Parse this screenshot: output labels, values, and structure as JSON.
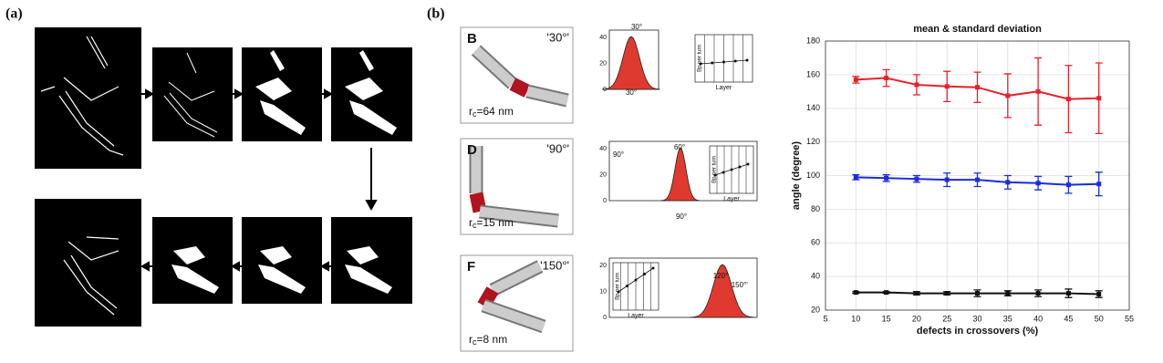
{
  "labels": {
    "a": "(a)",
    "b": "(b)"
  },
  "origami": [
    {
      "letter": "B",
      "angle": "'30°'",
      "radius_symbol": "r",
      "radius_subscript": "c",
      "radius_value": "=64 nm",
      "hist_yticks": [
        "40",
        "20",
        "0"
      ],
      "hist_texts": [
        "30°",
        "30°"
      ],
      "inset_ylabel": "Bp per turn",
      "inset_xlabel": "Layer"
    },
    {
      "letter": "D",
      "angle": "'90°'",
      "radius_symbol": "r",
      "radius_subscript": "c",
      "radius_value": "=15 nm",
      "hist_yticks": [
        "40",
        "20",
        "0"
      ],
      "hist_texts": [
        "90°",
        "60°",
        "90°"
      ],
      "inset_ylabel": "Bp per turn",
      "inset_xlabel": "Layer"
    },
    {
      "letter": "F",
      "angle": "'150°'",
      "radius_symbol": "r",
      "radius_subscript": "c",
      "radius_value": "=8 nm",
      "hist_yticks": [
        "20",
        "10",
        "0"
      ],
      "hist_texts": [
        "120°",
        "'150°'"
      ],
      "inset_ylabel": "Bp per turn",
      "inset_xlabel": "Layer"
    }
  ],
  "chart_data": {
    "type": "line",
    "title": "mean & standard deviation",
    "x_label": "defects in crossovers (%)",
    "y_label": "angle (degree)",
    "x": [
      10,
      15,
      20,
      25,
      30,
      35,
      40,
      45,
      50
    ],
    "series": [
      {
        "name": "red",
        "color": "#e8202a",
        "values": [
          157,
          158,
          154,
          153,
          152.5,
          147.5,
          150,
          145.5,
          146
        ],
        "errors": [
          2,
          5,
          6,
          9,
          9,
          13,
          20,
          20,
          21
        ]
      },
      {
        "name": "blue",
        "color": "#1a2be0",
        "values": [
          99,
          98.5,
          98,
          97.5,
          97.5,
          96,
          95.5,
          94.5,
          95
        ],
        "errors": [
          1.5,
          2,
          2,
          4,
          4,
          4,
          4,
          5,
          7
        ]
      },
      {
        "name": "black",
        "color": "#111111",
        "values": [
          30.5,
          30.5,
          30,
          30,
          30,
          30,
          30,
          30,
          29.5
        ],
        "errors": [
          0.5,
          0.5,
          1,
          1,
          2,
          1.5,
          2,
          2.5,
          2
        ]
      }
    ],
    "xlim": [
      5,
      55
    ],
    "xticks": [
      5,
      10,
      15,
      20,
      25,
      30,
      35,
      40,
      45,
      50,
      55
    ],
    "ylim": [
      20,
      180
    ],
    "yticks": [
      20,
      40,
      60,
      80,
      100,
      120,
      140,
      160,
      180
    ],
    "grid": true
  }
}
